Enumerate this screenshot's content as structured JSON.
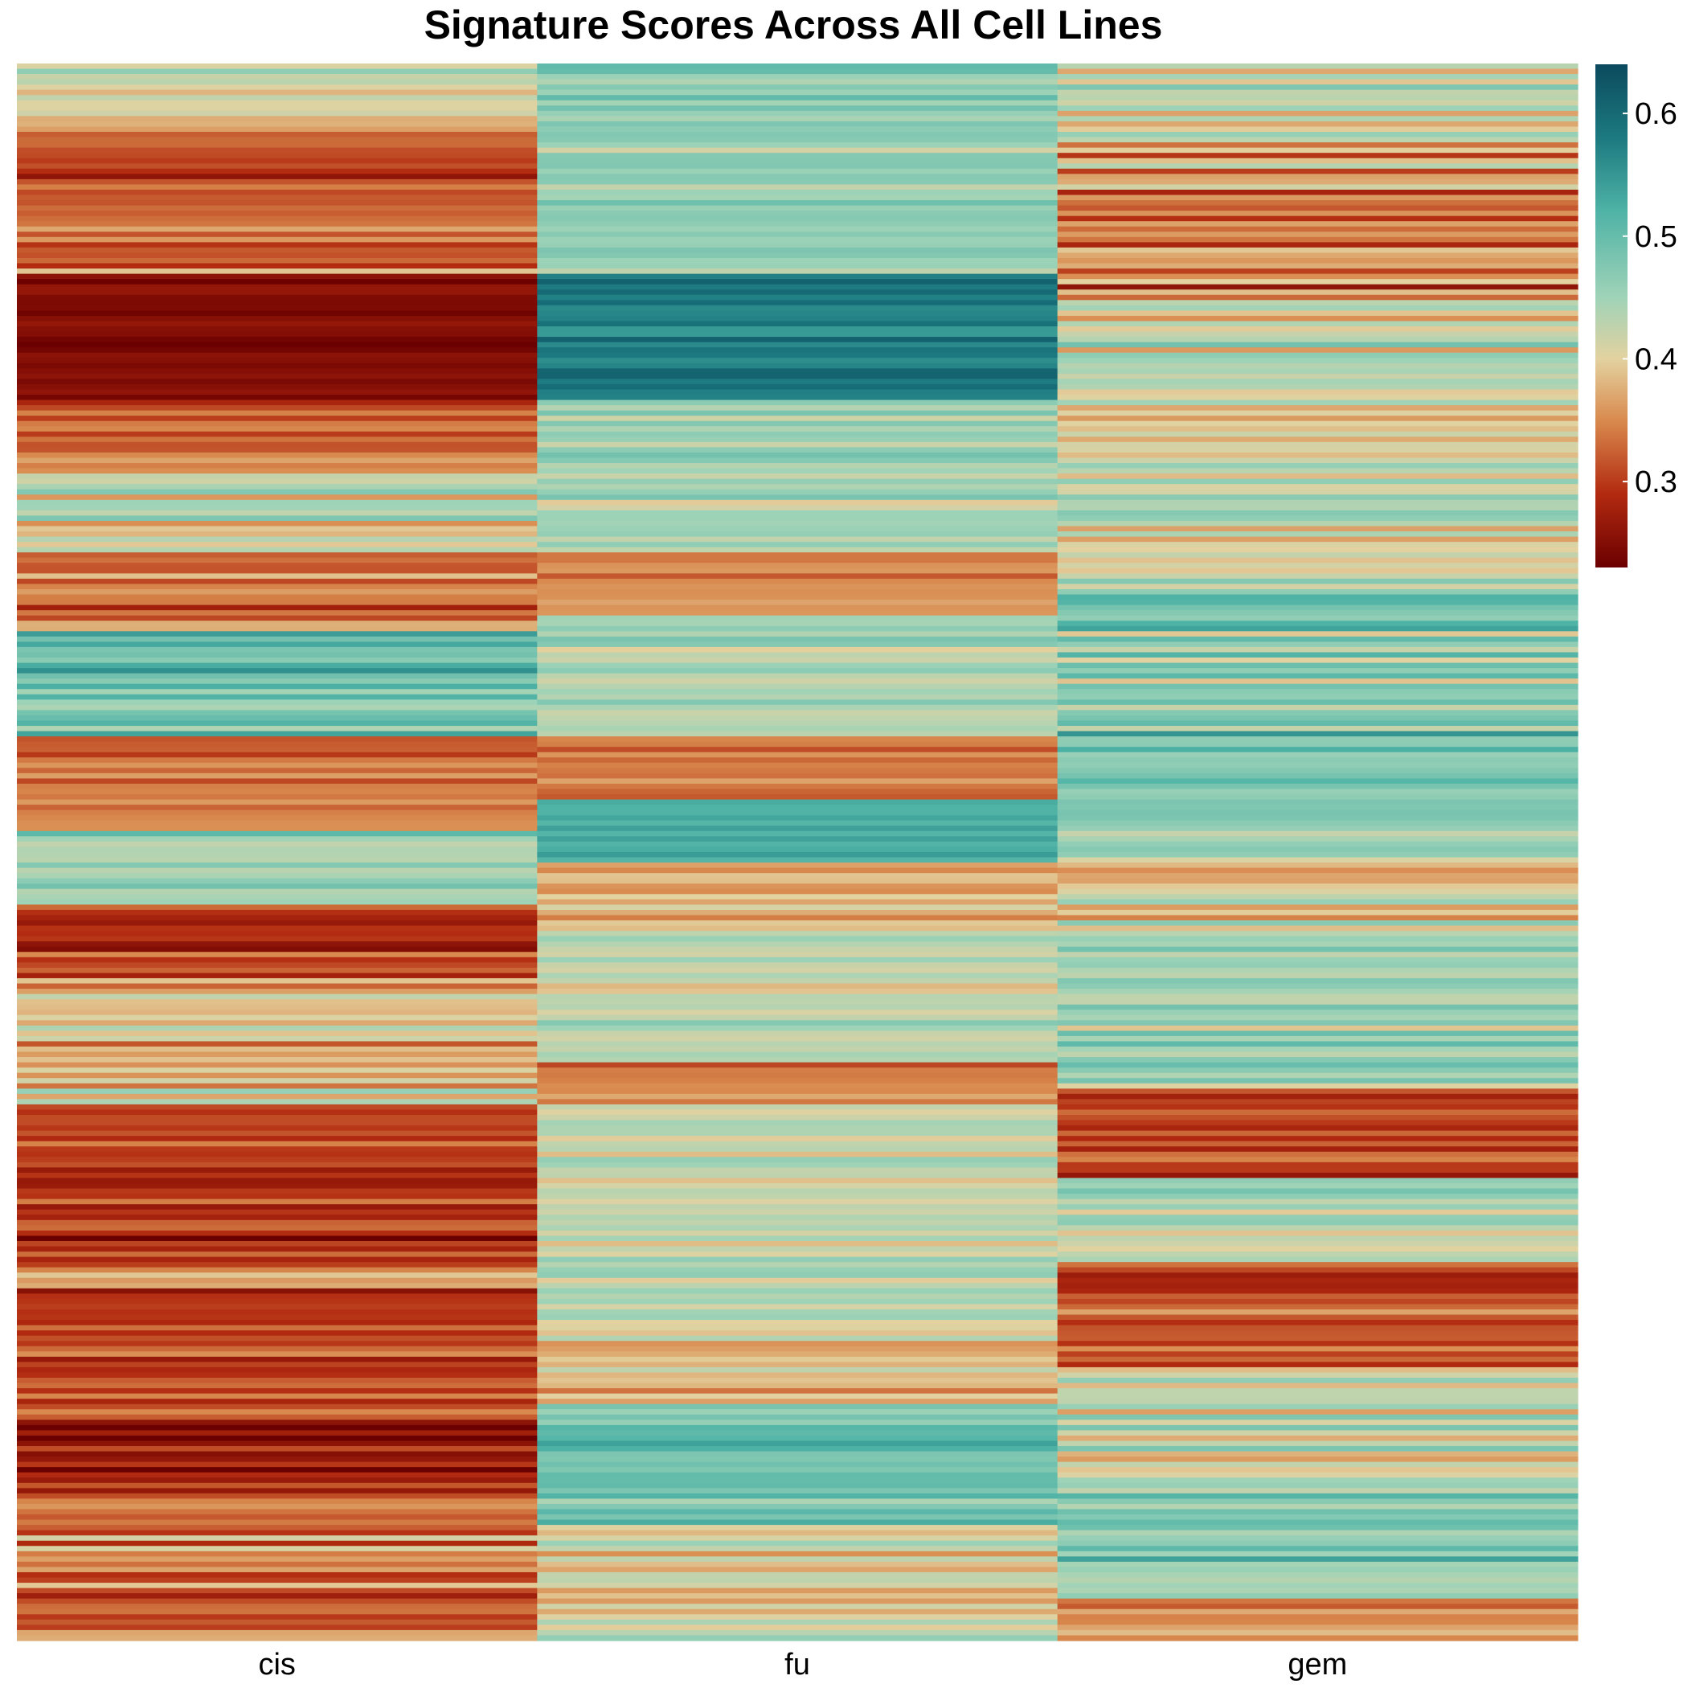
{
  "chart_data": {
    "type": "heatmap",
    "title": "Signature Scores Across All Cell Lines",
    "xlabel": "",
    "ylabel": "",
    "columns": [
      "cis",
      "fu",
      "gem"
    ],
    "row_count": 300,
    "row_labels_shown": false,
    "color_scale": {
      "range": [
        0.23,
        0.64
      ],
      "ticks": [
        0.3,
        0.4,
        0.5,
        0.6
      ],
      "tick_labels": [
        "0.3",
        "0.4",
        "0.5",
        "0.6"
      ],
      "stops": [
        {
          "value": 0.23,
          "color": "#6b0000"
        },
        {
          "value": 0.29,
          "color": "#b22a10"
        },
        {
          "value": 0.35,
          "color": "#d98a4e"
        },
        {
          "value": 0.4,
          "color": "#e3d2a0"
        },
        {
          "value": 0.45,
          "color": "#9fd3b8"
        },
        {
          "value": 0.52,
          "color": "#4fb3a6"
        },
        {
          "value": 0.58,
          "color": "#1c7a80"
        },
        {
          "value": 0.64,
          "color": "#0b4a5e"
        }
      ]
    },
    "segments": {
      "cis": [
        [
          0,
          12,
          0.4,
          0.07
        ],
        [
          12,
          40,
          0.32,
          0.06
        ],
        [
          40,
          64,
          0.25,
          0.025
        ],
        [
          64,
          78,
          0.32,
          0.06
        ],
        [
          78,
          93,
          0.42,
          0.06
        ],
        [
          93,
          108,
          0.33,
          0.05
        ],
        [
          108,
          128,
          0.5,
          0.05
        ],
        [
          128,
          146,
          0.34,
          0.04
        ],
        [
          146,
          160,
          0.45,
          0.04
        ],
        [
          160,
          174,
          0.3,
          0.05
        ],
        [
          174,
          198,
          0.38,
          0.06
        ],
        [
          198,
          228,
          0.29,
          0.05
        ],
        [
          228,
          257,
          0.32,
          0.06
        ],
        [
          257,
          272,
          0.28,
          0.05
        ],
        [
          272,
          300,
          0.34,
          0.06
        ]
      ],
      "fu": [
        [
          0,
          40,
          0.46,
          0.04
        ],
        [
          40,
          64,
          0.58,
          0.035
        ],
        [
          64,
          93,
          0.45,
          0.04
        ],
        [
          93,
          105,
          0.35,
          0.04
        ],
        [
          105,
          128,
          0.45,
          0.04
        ],
        [
          128,
          140,
          0.33,
          0.03
        ],
        [
          140,
          152,
          0.53,
          0.025
        ],
        [
          152,
          165,
          0.37,
          0.04
        ],
        [
          165,
          190,
          0.42,
          0.04
        ],
        [
          190,
          198,
          0.35,
          0.03
        ],
        [
          198,
          240,
          0.43,
          0.04
        ],
        [
          240,
          255,
          0.39,
          0.05
        ],
        [
          255,
          278,
          0.49,
          0.05
        ],
        [
          278,
          300,
          0.41,
          0.05
        ]
      ],
      "gem": [
        [
          0,
          15,
          0.41,
          0.07
        ],
        [
          15,
          45,
          0.35,
          0.07
        ],
        [
          45,
          100,
          0.42,
          0.06
        ],
        [
          100,
          150,
          0.47,
          0.06
        ],
        [
          150,
          168,
          0.4,
          0.07
        ],
        [
          168,
          195,
          0.45,
          0.06
        ],
        [
          195,
          212,
          0.3,
          0.045
        ],
        [
          212,
          228,
          0.42,
          0.06
        ],
        [
          228,
          248,
          0.31,
          0.05
        ],
        [
          248,
          270,
          0.41,
          0.06
        ],
        [
          270,
          292,
          0.46,
          0.07
        ],
        [
          292,
          300,
          0.36,
          0.06
        ]
      ]
    }
  }
}
